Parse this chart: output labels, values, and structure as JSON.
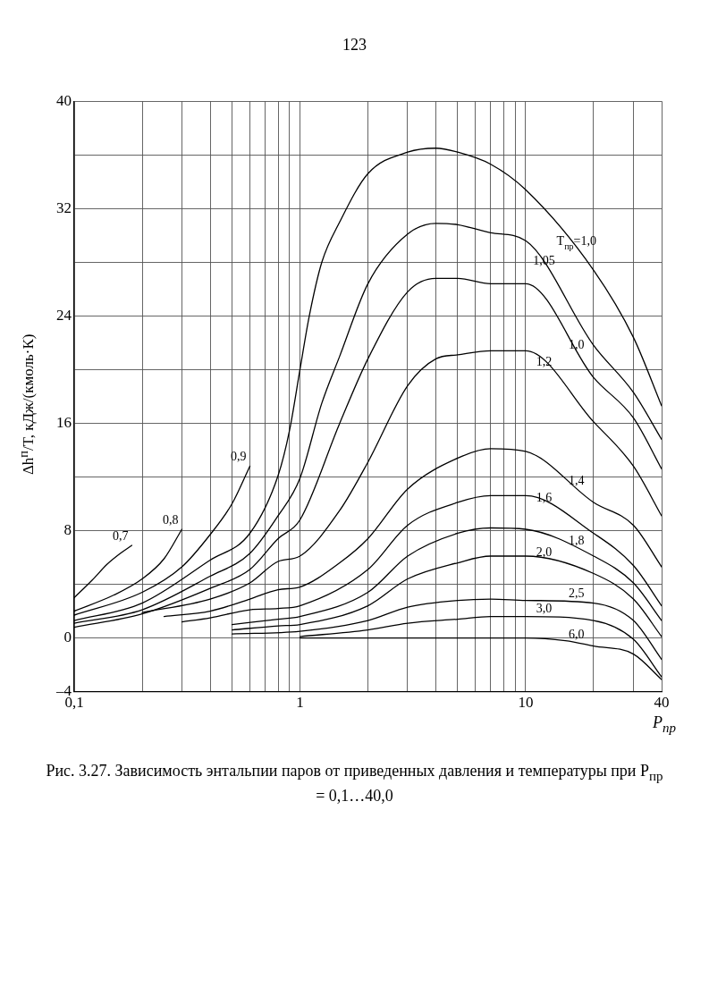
{
  "chart_data": {
    "type": "line",
    "title": "Рис. 3.27. Зависимость энтальпии паров от приведенных давления и температуры при P$_{пр}$ = 0,1…40,0",
    "xlabel": "P$_{пр}$",
    "ylabel": "Δh$^{п}$/T, кДж/(кмоль·К)",
    "annotations": [
      "123"
    ],
    "log": "x",
    "grid": true,
    "legend": false,
    "marker": "none",
    "xlim": [
      0.1,
      40
    ],
    "ylim": [
      -4,
      40
    ],
    "xticks": [
      {
        "value": 0.1,
        "label": "0,1"
      },
      {
        "value": 0.2,
        "label": null
      },
      {
        "value": 0.3,
        "label": null
      },
      {
        "value": 0.4,
        "label": null
      },
      {
        "value": 0.5,
        "label": null
      },
      {
        "value": 0.6,
        "label": null
      },
      {
        "value": 0.7,
        "label": null
      },
      {
        "value": 0.8,
        "label": null
      },
      {
        "value": 0.9,
        "label": null
      },
      1,
      {
        "value": 2,
        "label": null
      },
      {
        "value": 3,
        "label": null
      },
      {
        "value": 4,
        "label": null
      },
      {
        "value": 5,
        "label": null
      },
      {
        "value": 6,
        "label": null
      },
      {
        "value": 7,
        "label": null
      },
      {
        "value": 8,
        "label": null
      },
      {
        "value": 9,
        "label": null
      },
      10,
      {
        "value": 20,
        "label": null
      },
      {
        "value": 30,
        "label": null
      },
      40
    ],
    "yticks": [
      {
        "value": -4,
        "label": "–4"
      },
      0,
      {
        "value": 4,
        "label": null
      },
      8,
      {
        "value": 12,
        "label": null
      },
      16,
      {
        "value": 20,
        "label": null
      },
      24,
      {
        "value": 28,
        "label": null
      },
      32,
      {
        "value": 36,
        "label": null
      },
      40
    ],
    "series": [
      {
        "name": "0,7",
        "color": "#000000",
        "x": [
          0.1,
          0.12,
          0.14,
          0.16,
          0.18
        ],
        "values": [
          3.0,
          4.3,
          5.5,
          6.3,
          6.9
        ]
      },
      {
        "name": "0,8",
        "color": "#000000",
        "x": [
          0.1,
          0.15,
          0.2,
          0.25,
          0.3
        ],
        "values": [
          2.0,
          3.2,
          4.4,
          5.9,
          8.1
        ]
      },
      {
        "name": "0,9",
        "color": "#000000",
        "x": [
          0.1,
          0.2,
          0.3,
          0.4,
          0.5,
          0.6
        ],
        "values": [
          1.7,
          3.4,
          5.3,
          7.7,
          10.0,
          12.8
        ]
      },
      {
        "name": "T$_{пр}$=1,0",
        "color": "#000000",
        "x": [
          0.1,
          0.2,
          0.4,
          0.6,
          0.8,
          0.9,
          1,
          1.1,
          1.25,
          1.5,
          2,
          3,
          4,
          5,
          7,
          10,
          20,
          30,
          40
        ],
        "values": [
          1.3,
          2.6,
          5.8,
          7.8,
          12.1,
          15.5,
          20,
          24,
          28,
          31,
          34.6,
          36.2,
          36.5,
          36.2,
          35.3,
          33.4,
          27.4,
          22.4,
          17.3
        ]
      },
      {
        "name": "1,05",
        "color": "#000000",
        "x": [
          0.1,
          0.2,
          0.4,
          0.6,
          0.8,
          1,
          1.25,
          1.5,
          2,
          3,
          4,
          5,
          7,
          10,
          20,
          30,
          40
        ],
        "values": [
          1.1,
          2.1,
          4.6,
          6.3,
          9.1,
          11.9,
          17.5,
          21,
          26.4,
          30.1,
          30.9,
          30.8,
          30.2,
          29.6,
          21.8,
          18.3,
          14.8
        ]
      },
      {
        "name": "1,0",
        "color": "#000000",
        "x": [
          0.1,
          0.2,
          0.4,
          0.6,
          0.8,
          1,
          1.5,
          2,
          3,
          4,
          5,
          7,
          10,
          20,
          30,
          40
        ],
        "values": [
          0.8,
          1.8,
          3.7,
          5.1,
          7.4,
          8.8,
          16,
          20.8,
          25.8,
          26.8,
          26.8,
          26.4,
          26.4,
          19.4,
          16.4,
          12.6
        ]
      },
      {
        "name": "1,2",
        "color": "#000000",
        "x": [
          0.2,
          0.4,
          0.6,
          0.8,
          1,
          1.5,
          2,
          3,
          4,
          5,
          7,
          10,
          20,
          30,
          40
        ],
        "values": [
          1.9,
          2.9,
          4.1,
          5.7,
          6.1,
          9.5,
          13.1,
          18.8,
          20.8,
          21.1,
          21.4,
          21.4,
          16.1,
          12.8,
          9.1
        ]
      },
      {
        "name": "1,4",
        "color": "#000000",
        "x": [
          0.25,
          0.4,
          0.6,
          0.8,
          1,
          1.5,
          2,
          3,
          5,
          7,
          10,
          20,
          30,
          40
        ],
        "values": [
          1.6,
          2.0,
          2.9,
          3.6,
          3.8,
          5.6,
          7.4,
          11.1,
          13.4,
          14.1,
          13.9,
          10.1,
          8.4,
          5.3
        ]
      },
      {
        "name": "1,6",
        "color": "#000000",
        "x": [
          0.3,
          0.4,
          0.6,
          0.8,
          1,
          2,
          3,
          5,
          7,
          10,
          20,
          30,
          40
        ],
        "values": [
          1.2,
          1.5,
          2.1,
          2.2,
          2.4,
          5.1,
          8.4,
          10.1,
          10.6,
          10.6,
          7.8,
          5.4,
          2.4
        ]
      },
      {
        "name": "1,8",
        "color": "#000000",
        "x": [
          0.5,
          0.8,
          1,
          2,
          3,
          5,
          7,
          10,
          20,
          30,
          40
        ],
        "values": [
          1.0,
          1.4,
          1.6,
          3.4,
          6.1,
          7.8,
          8.2,
          8.1,
          6.1,
          4.1,
          1.3
        ]
      },
      {
        "name": "2,0",
        "color": "#000000",
        "x": [
          0.5,
          0.8,
          1,
          2,
          3,
          5,
          7,
          10,
          20,
          30,
          40
        ],
        "values": [
          0.6,
          0.9,
          1.0,
          2.4,
          4.4,
          5.6,
          6.1,
          6.1,
          4.8,
          2.9,
          0.1
        ]
      },
      {
        "name": "2,5",
        "color": "#000000",
        "x": [
          0.5,
          1,
          2,
          3,
          5,
          7,
          10,
          20,
          30,
          40
        ],
        "values": [
          0.3,
          0.5,
          1.3,
          2.3,
          2.8,
          2.9,
          2.8,
          2.6,
          1.3,
          -1.6
        ]
      },
      {
        "name": "3,0",
        "color": "#000000",
        "x": [
          1,
          2,
          3,
          5,
          7,
          10,
          20,
          30,
          40
        ],
        "values": [
          0.1,
          0.6,
          1.1,
          1.4,
          1.6,
          1.6,
          1.3,
          -0.1,
          -2.9
        ]
      },
      {
        "name": "6,0",
        "color": "#000000",
        "x": [
          1,
          5,
          10,
          15,
          20,
          30,
          40
        ],
        "values": [
          0,
          0,
          0,
          -0.2,
          -0.6,
          -1.2,
          -3.1
        ]
      }
    ]
  }
}
